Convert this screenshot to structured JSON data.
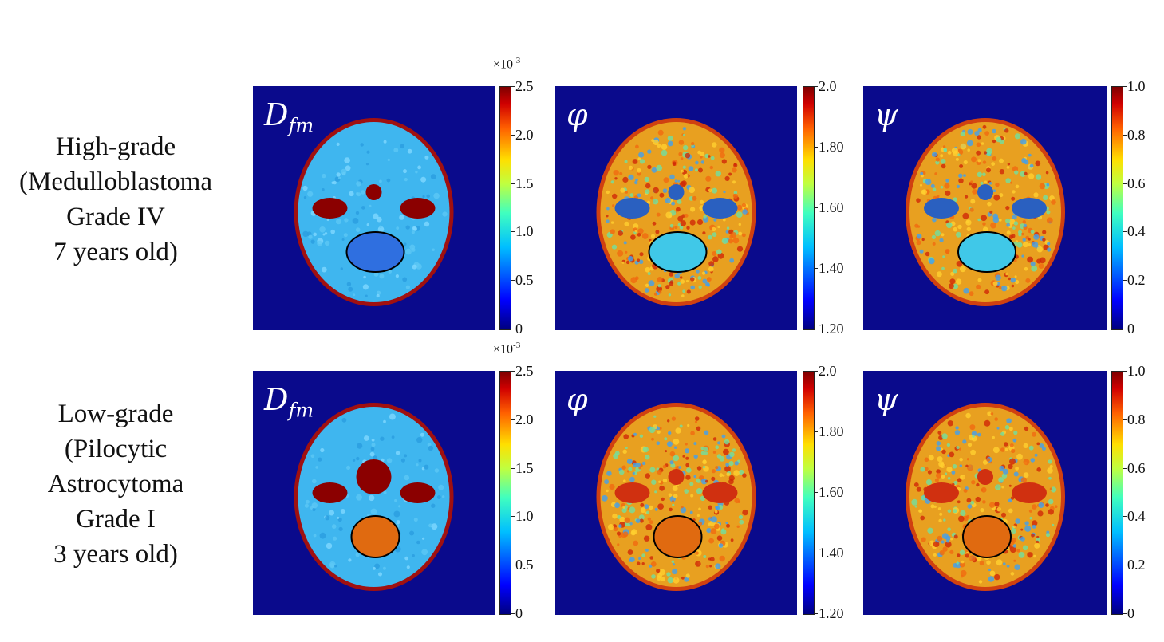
{
  "rows": [
    {
      "label_lines": [
        "High-grade",
        "(Medulloblastoma",
        "Grade IV",
        "7 years old)"
      ],
      "panels": [
        {
          "symbol": "D",
          "subscript": "fm",
          "multiplier": "×10",
          "multiplier_exp": "-3",
          "ticks": [
            "2.5",
            "2.0",
            "1.5",
            "1.0",
            "0.5",
            "0"
          ]
        },
        {
          "symbol": "φ",
          "subscript": "",
          "multiplier": "",
          "multiplier_exp": "",
          "ticks": [
            "2.0",
            "1.80",
            "1.60",
            "1.40",
            "1.20"
          ]
        },
        {
          "symbol": "ψ",
          "subscript": "",
          "multiplier": "",
          "multiplier_exp": "",
          "ticks": [
            "1.0",
            "0.8",
            "0.6",
            "0.4",
            "0.2",
            "0"
          ]
        }
      ]
    },
    {
      "label_lines": [
        "Low-grade",
        "(Pilocytic",
        "Astrocytoma",
        "Grade I",
        "3 years old)"
      ],
      "panels": [
        {
          "symbol": "D",
          "subscript": "fm",
          "multiplier": "×10",
          "multiplier_exp": "-3",
          "ticks": [
            "2.5",
            "2.0",
            "1.5",
            "1.0",
            "0.5",
            "0"
          ]
        },
        {
          "symbol": "φ",
          "subscript": "",
          "multiplier": "",
          "multiplier_exp": "",
          "ticks": [
            "2.0",
            "1.80",
            "1.60",
            "1.40",
            "1.20"
          ]
        },
        {
          "symbol": "ψ",
          "subscript": "",
          "multiplier": "",
          "multiplier_exp": "",
          "ticks": [
            "1.0",
            "0.8",
            "0.6",
            "0.4",
            "0.2",
            "0"
          ]
        }
      ]
    }
  ],
  "colors": {
    "background": "#0a0a8c",
    "brain_dfm": "#3fb6ef",
    "brain_param": "#e8a020",
    "ventricle": "#8b0000",
    "tumor_high": "#2f6fe0",
    "tumor_low": "#e06a10"
  }
}
